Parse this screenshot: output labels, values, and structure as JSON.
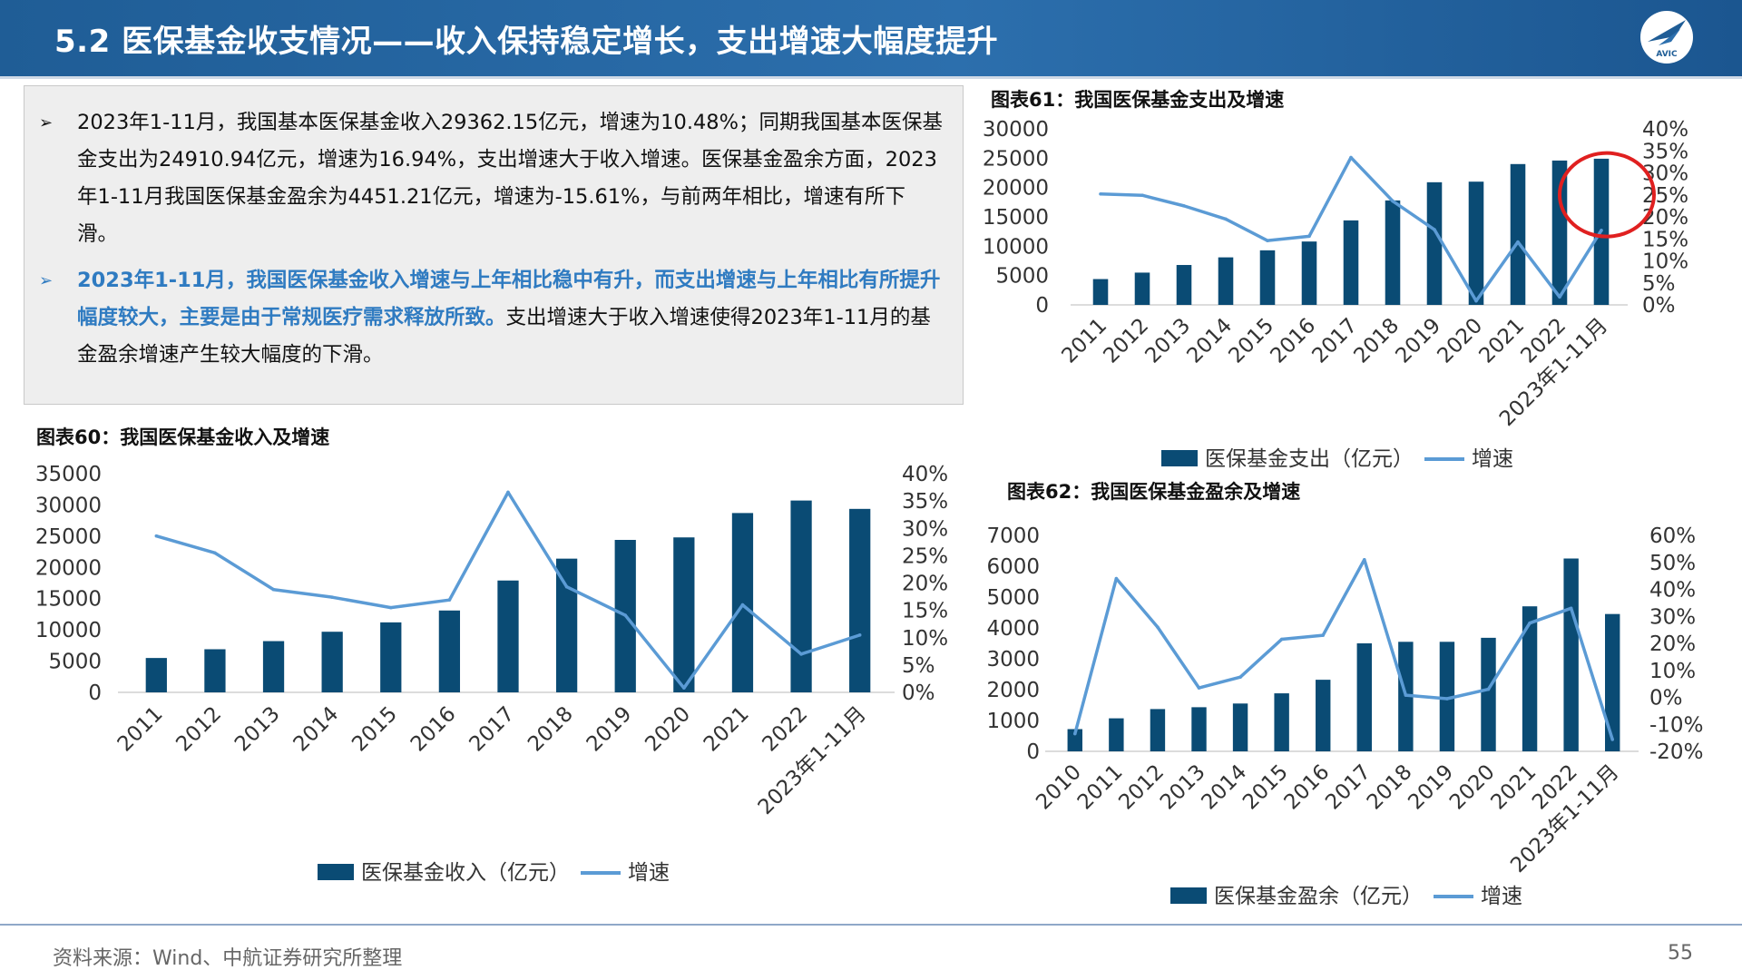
{
  "header": {
    "title": "5.2 医保基金收支情况——收入保持稳定增长，支出增速大幅度提升",
    "logo_text": "AVIC"
  },
  "summary": {
    "bullet1": "2023年1-11月，我国基本医保基金收入29362.15亿元，增速为10.48%；同期我国基本医保基金支出为24910.94亿元，增速为16.94%，支出增速大于收入增速。医保基金盈余方面，2023年1-11月我国医保基金盈余为4451.21亿元，增速为-15.61%，与前两年相比，增速有所下滑。",
    "bullet2_highlight": "2023年1-11月，我国医保基金收入增速与上年相比稳中有升，而支出增速与上年相比有所提升幅度较大，主要是由于常规医疗需求释放所致。",
    "bullet2_rest": "支出增速大于收入增速使得2023年1-11月的基金盈余增速产生较大幅度的下滑。"
  },
  "footer": {
    "source": "资料来源：Wind、中航证券研究所整理",
    "page": "55"
  },
  "colors": {
    "bar": "#0a4b74",
    "line": "#5b9bd5",
    "header": "#1f5d96",
    "circle": "#e02020"
  },
  "chart_data": [
    {
      "id": "chart60",
      "type": "bar",
      "title": "图表60：我国医保基金收入及增速",
      "categories": [
        "2011",
        "2012",
        "2013",
        "2014",
        "2015",
        "2016",
        "2017",
        "2018",
        "2019",
        "2020",
        "2021",
        "2022",
        "2023年1-11月"
      ],
      "series": [
        {
          "name": "医保基金收入（亿元）",
          "type": "bar",
          "values": [
            5500,
            6900,
            8200,
            9700,
            11200,
            13100,
            17900,
            21400,
            24400,
            24800,
            28700,
            30700,
            29362
          ]
        },
        {
          "name": "增速",
          "type": "line",
          "axis": "right",
          "values": [
            28.6,
            25.5,
            18.8,
            17.4,
            15.5,
            16.9,
            36.6,
            19.3,
            14.1,
            0.8,
            16.0,
            7.0,
            10.48
          ]
        }
      ],
      "y_left": {
        "min": 0,
        "max": 35000,
        "step": 5000
      },
      "y_right": {
        "min": 0,
        "max": 40,
        "step": 5,
        "format": "percent"
      },
      "legend_position": "bottom"
    },
    {
      "id": "chart61",
      "type": "bar",
      "title": "图表61：我国医保基金支出及增速",
      "categories": [
        "2011",
        "2012",
        "2013",
        "2014",
        "2015",
        "2016",
        "2017",
        "2018",
        "2019",
        "2020",
        "2021",
        "2022",
        "2023年1-11月"
      ],
      "series": [
        {
          "name": "医保基金支出（亿元）",
          "type": "bar",
          "values": [
            4400,
            5500,
            6800,
            8100,
            9300,
            10800,
            14400,
            17800,
            20900,
            21000,
            24000,
            24600,
            24911
          ]
        },
        {
          "name": "增速",
          "type": "line",
          "axis": "right",
          "values": [
            25.2,
            24.9,
            22.5,
            19.5,
            14.6,
            15.6,
            33.5,
            23.6,
            17.1,
            0.9,
            14.3,
            1.8,
            16.94
          ]
        }
      ],
      "y_left": {
        "min": 0,
        "max": 30000,
        "step": 5000
      },
      "y_right": {
        "min": 0,
        "max": 40,
        "step": 5,
        "format": "percent"
      },
      "legend_position": "bottom",
      "annotation": "red circle around last category"
    },
    {
      "id": "chart62",
      "type": "bar",
      "title": "图表62：我国医保基金盈余及增速",
      "categories": [
        "2010",
        "2011",
        "2012",
        "2013",
        "2014",
        "2015",
        "2016",
        "2017",
        "2018",
        "2019",
        "2020",
        "2021",
        "2022",
        "2023年1-11月"
      ],
      "series": [
        {
          "name": "医保基金盈余（亿元）",
          "type": "bar",
          "values": [
            720,
            1070,
            1370,
            1430,
            1550,
            1880,
            2320,
            3500,
            3550,
            3550,
            3680,
            4700,
            6250,
            4451
          ]
        },
        {
          "name": "增速",
          "type": "line",
          "axis": "right",
          "values": [
            -13.5,
            44.0,
            26.0,
            3.5,
            7.5,
            21.5,
            23.0,
            51.0,
            0.8,
            -0.5,
            3.0,
            27.5,
            33.0,
            -15.61
          ]
        }
      ],
      "y_left": {
        "min": 0,
        "max": 7000,
        "step": 1000
      },
      "y_right": {
        "min": -20,
        "max": 60,
        "step": 10,
        "format": "percent"
      },
      "legend_position": "bottom"
    }
  ]
}
